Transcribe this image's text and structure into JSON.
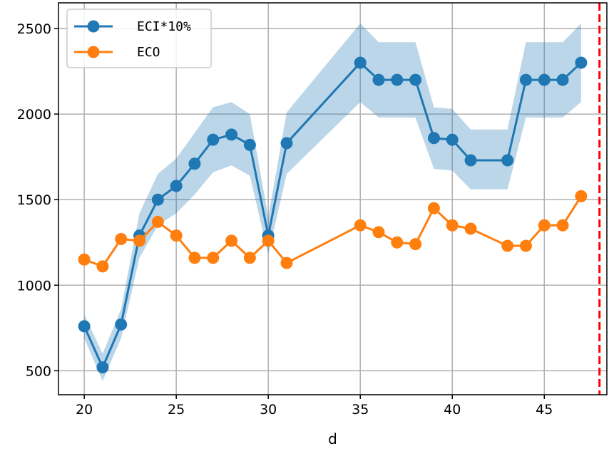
{
  "chart_data": {
    "type": "line",
    "xlabel": "d",
    "ylabel": "",
    "xlim": [
      18.6,
      48.4
    ],
    "ylim": [
      360,
      2650
    ],
    "xticks": [
      20,
      25,
      30,
      35,
      40,
      45
    ],
    "yticks": [
      500,
      1000,
      1500,
      2000,
      2500
    ],
    "grid": true,
    "legend_position": "top-left",
    "vline": {
      "x": 48,
      "color": "#ff0000",
      "style": "dashed"
    },
    "series": [
      {
        "name": "ECI*10%",
        "color": "#1f77b4",
        "band_color": "#1f77b4",
        "x": [
          20,
          21,
          22,
          23,
          24,
          25,
          26,
          27,
          28,
          29,
          30,
          31,
          35,
          36,
          37,
          38,
          39,
          40,
          41,
          43,
          44,
          45,
          46,
          47
        ],
        "y": [
          760,
          520,
          770,
          1290,
          1500,
          1580,
          1710,
          1850,
          1880,
          1820,
          1290,
          1830,
          2300,
          2200,
          2200,
          2200,
          1860,
          1850,
          1730,
          1730,
          2200,
          2200,
          2200,
          2300
        ],
        "band_upper": [
          830,
          600,
          860,
          1420,
          1650,
          1740,
          1890,
          2040,
          2070,
          2000,
          1400,
          2010,
          2530,
          2420,
          2420,
          2420,
          2040,
          2030,
          1910,
          1910,
          2420,
          2420,
          2420,
          2530
        ],
        "band_lower": [
          690,
          440,
          690,
          1160,
          1350,
          1420,
          1530,
          1660,
          1700,
          1640,
          1180,
          1650,
          2070,
          1980,
          1980,
          1980,
          1680,
          1670,
          1560,
          1560,
          1980,
          1980,
          1980,
          2070
        ]
      },
      {
        "name": "ECO",
        "color": "#ff7f0e",
        "x": [
          20,
          21,
          22,
          23,
          24,
          25,
          26,
          27,
          28,
          29,
          30,
          31,
          35,
          36,
          37,
          38,
          39,
          40,
          41,
          43,
          44,
          45,
          46,
          47
        ],
        "y": [
          1150,
          1110,
          1270,
          1260,
          1370,
          1290,
          1160,
          1160,
          1260,
          1160,
          1260,
          1130,
          1350,
          1310,
          1250,
          1240,
          1450,
          1350,
          1330,
          1230,
          1230,
          1350,
          1350,
          1520
        ]
      }
    ]
  }
}
